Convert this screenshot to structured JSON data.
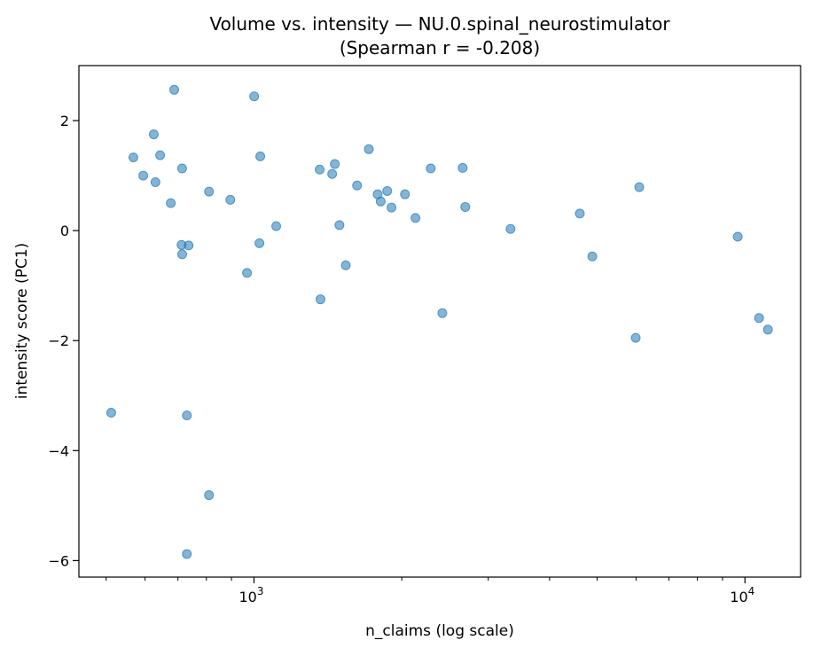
{
  "chart_data": {
    "type": "scatter",
    "title": "Volume vs. intensity — NU.0.spinal_neurostimulator",
    "subtitle": "(Spearman r = -0.208)",
    "xlabel": "n_claims (log scale)",
    "ylabel": "intensity score (PC1)",
    "xscale": "log",
    "xlim": [
      440,
      12980
    ],
    "ylim": [
      -6.3,
      3.0
    ],
    "xticks": [
      {
        "value": 1000,
        "base": "10",
        "exp": "3"
      },
      {
        "value": 10000,
        "base": "10",
        "exp": "4"
      }
    ],
    "yticks": [
      {
        "value": 2,
        "label": "2"
      },
      {
        "value": 0,
        "label": "0"
      },
      {
        "value": -2,
        "label": "−2"
      },
      {
        "value": -4,
        "label": "−4"
      },
      {
        "value": -6,
        "label": "−6"
      }
    ],
    "grid": false,
    "color": "#1f77b4",
    "points": [
      [
        512,
        -3.31
      ],
      [
        568,
        1.33
      ],
      [
        595,
        1.0
      ],
      [
        625,
        1.75
      ],
      [
        630,
        0.88
      ],
      [
        644,
        1.37
      ],
      [
        677,
        0.5
      ],
      [
        688,
        2.56
      ],
      [
        714,
        1.13
      ],
      [
        712,
        -0.26
      ],
      [
        714,
        -0.43
      ],
      [
        736,
        -0.27
      ],
      [
        730,
        -3.36
      ],
      [
        730,
        -5.88
      ],
      [
        810,
        0.71
      ],
      [
        810,
        -4.81
      ],
      [
        895,
        0.56
      ],
      [
        968,
        -0.77
      ],
      [
        1001,
        2.44
      ],
      [
        1026,
        -0.23
      ],
      [
        1030,
        1.35
      ],
      [
        1110,
        0.08
      ],
      [
        1361,
        1.11
      ],
      [
        1366,
        -1.25
      ],
      [
        1443,
        1.03
      ],
      [
        1461,
        1.21
      ],
      [
        1493,
        0.1
      ],
      [
        1538,
        -0.63
      ],
      [
        1622,
        0.82
      ],
      [
        1714,
        1.48
      ],
      [
        1786,
        0.66
      ],
      [
        1812,
        0.53
      ],
      [
        1868,
        0.72
      ],
      [
        1906,
        0.42
      ],
      [
        2030,
        0.66
      ],
      [
        2133,
        0.23
      ],
      [
        2291,
        1.13
      ],
      [
        2419,
        -1.5
      ],
      [
        2661,
        1.14
      ],
      [
        2694,
        0.43
      ],
      [
        3331,
        0.03
      ],
      [
        4609,
        0.31
      ],
      [
        4887,
        -0.47
      ],
      [
        5990,
        -1.95
      ],
      [
        6091,
        0.79
      ],
      [
        9667,
        -0.11
      ],
      [
        10683,
        -1.59
      ],
      [
        11136,
        -1.8
      ]
    ]
  }
}
